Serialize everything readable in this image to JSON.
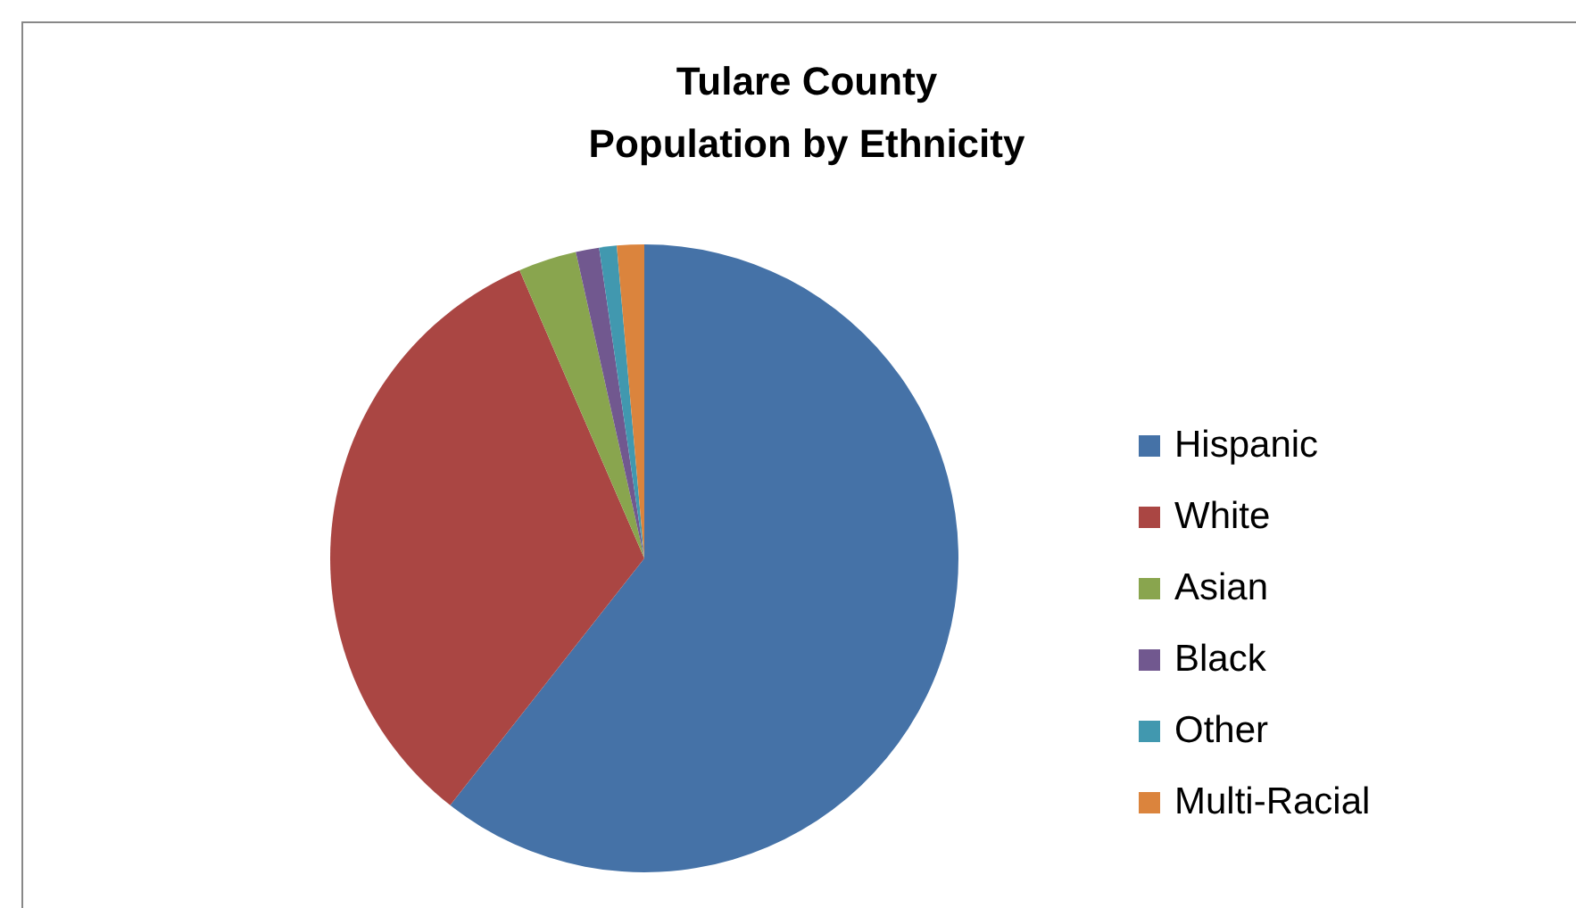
{
  "chart_data": {
    "type": "pie",
    "title": "Tulare County\nPopulation by Ethnicity",
    "categories": [
      "Hispanic",
      "White",
      "Asian",
      "Black",
      "Other",
      "Multi-Racial"
    ],
    "values": [
      60.6,
      32.9,
      3.0,
      1.2,
      0.9,
      1.4
    ],
    "colors": [
      "#4572a7",
      "#aa4643",
      "#89a54e",
      "#71588f",
      "#4198af",
      "#db843d"
    ],
    "legend": "right"
  }
}
